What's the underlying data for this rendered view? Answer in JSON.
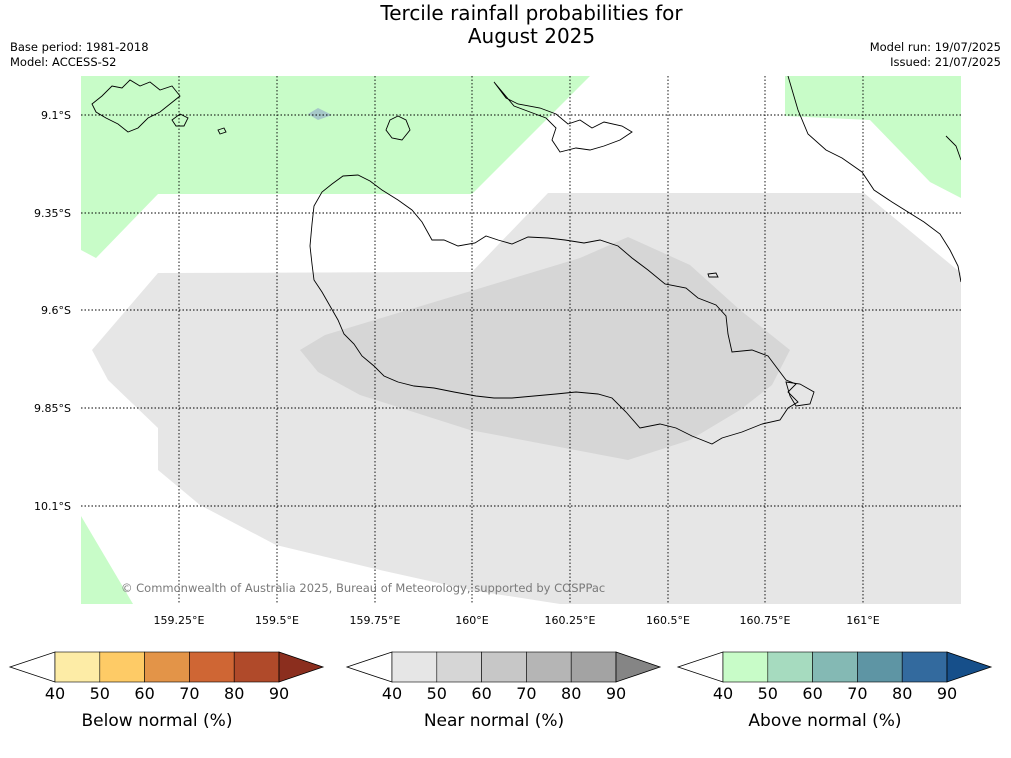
{
  "title_line1": "Tercile rainfall probabilities for",
  "title_line2": "August 2025",
  "meta_left": {
    "base_period": "Base period: 1981-2018",
    "model": "Model: ACCESS-S2"
  },
  "meta_right": {
    "model_run": "Model run: 19/07/2025",
    "issued": "Issued: 21/07/2025"
  },
  "lat_labels": [
    "9.1°S",
    "9.35°S",
    "9.6°S",
    "9.85°S",
    "10.1°S"
  ],
  "lon_labels": [
    "159.25°E",
    "159.5°E",
    "159.75°E",
    "160°E",
    "160.25°E",
    "160.5°E",
    "160.75°E",
    "161°E"
  ],
  "copyright": "© Commonwealth of Australia 2025, Bureau of Meteorology, supported by COSPPac",
  "colorbars": [
    {
      "title": "Below normal (%)",
      "colors": [
        "#fdeca6",
        "#fecb66",
        "#e39448",
        "#cf6634",
        "#b04a2a",
        "#8b2e1e"
      ]
    },
    {
      "title": "Near normal (%)",
      "colors": [
        "#e6e6e6",
        "#d6d6d6",
        "#c7c7c7",
        "#b5b5b5",
        "#a3a3a3",
        "#858585"
      ]
    },
    {
      "title": "Above normal (%)",
      "colors": [
        "#c8fcc8",
        "#a6dbbf",
        "#84b9b4",
        "#5e95a4",
        "#336a9e",
        "#164f8a"
      ]
    }
  ],
  "colorbar_ticks": [
    "40",
    "50",
    "60",
    "70",
    "80",
    "90"
  ],
  "colors": {
    "above_40": "#c8fcc8",
    "near_40": "#e6e6e6",
    "near_50": "#d6d6d6",
    "coast": "#000000",
    "grid": "#000000"
  }
}
